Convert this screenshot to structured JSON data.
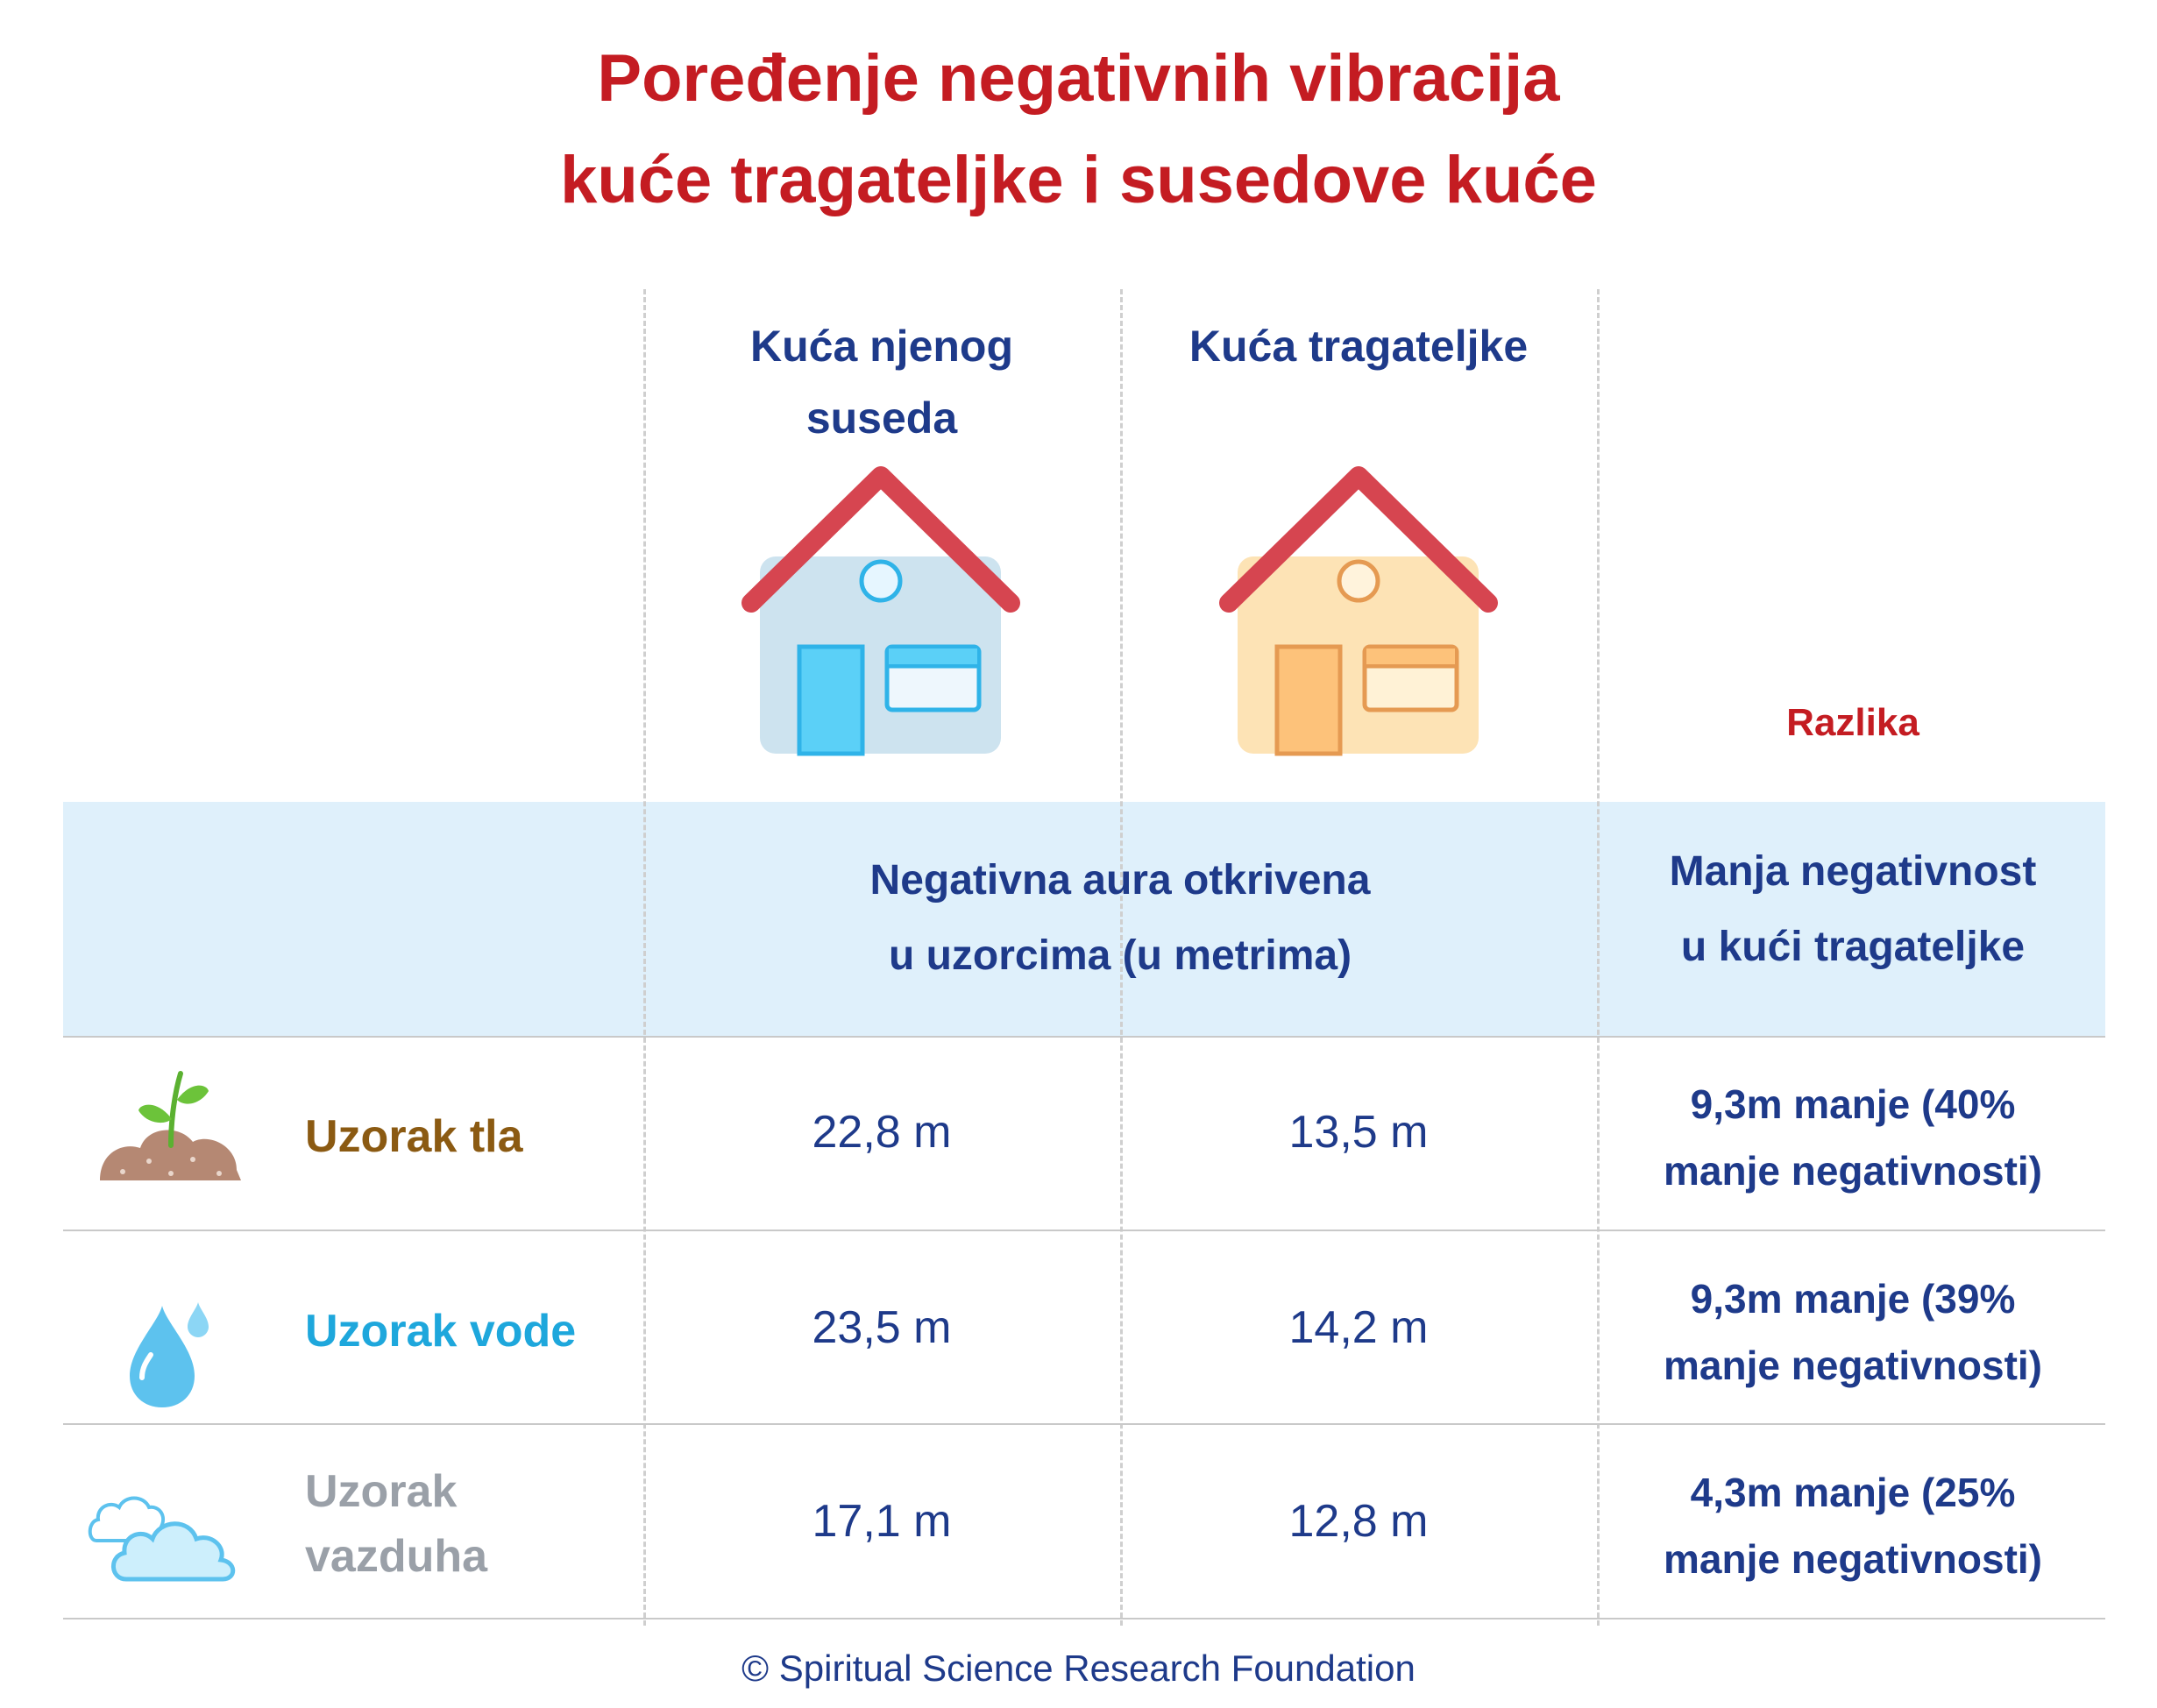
{
  "title": {
    "line1": "Poređenje negativnih vibracija",
    "line2": "kuće tragateljke i susedove kuće"
  },
  "columns": {
    "neighbor_house": "Kuća njenog suseda",
    "seeker_house": "Kuća tragateljke",
    "difference": "Razlika"
  },
  "band": {
    "center_line1": "Negativna aura otkrivena",
    "center_line2": "u uzorcima (u metrima)",
    "right_line1": "Manja negativnost",
    "right_line2": "u kući tragateljke"
  },
  "rows": [
    {
      "icon": "soil-sprout-icon",
      "label_line1": "Uzorak tla",
      "label_line2": "",
      "label_color": "#8b5a12",
      "neighbor": "22,8 m",
      "seeker": "13,5 m",
      "diff_line1": "9,3m manje (40%",
      "diff_line2": "manje negativnosti)"
    },
    {
      "icon": "water-drop-icon",
      "label_line1": "Uzorak vode",
      "label_line2": "",
      "label_color": "#1ea7dc",
      "neighbor": "23,5 m",
      "seeker": "14,2 m",
      "diff_line1": "9,3m manje (39%",
      "diff_line2": "manje negativnosti)"
    },
    {
      "icon": "cloud-icon",
      "label_line1": "Uzorak",
      "label_line2": "vazduha",
      "label_color": "#9aa0a8",
      "neighbor": "17,1 m",
      "seeker": "12,8 m",
      "diff_line1": "4,3m manje (25%",
      "diff_line2": "manje negativnosti)"
    }
  ],
  "icons": {
    "neighbor_house": "blue-house-icon",
    "seeker_house": "orange-house-icon"
  },
  "colors": {
    "title": "#c41c22",
    "text_primary": "#1e3a8a",
    "band": "#dff0fb",
    "roof": "#d64550"
  },
  "footer": "© Spiritual Science Research Foundation"
}
